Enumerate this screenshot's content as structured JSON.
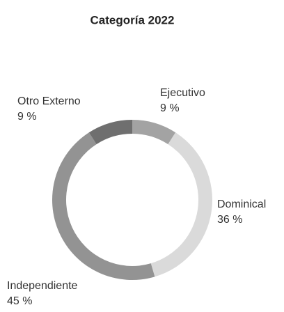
{
  "chart_data": {
    "type": "donut",
    "title": "Categoría 2022",
    "categories": [
      "Ejecutivo",
      "Dominical",
      "Independiente",
      "Otro Externo"
    ],
    "values": [
      9,
      36,
      45,
      9
    ],
    "value_labels": [
      "9 %",
      "36 %",
      "45 %",
      "9 %"
    ],
    "colors": [
      "#a3a3a3",
      "#dadada",
      "#939393",
      "#6f6f6f"
    ]
  }
}
